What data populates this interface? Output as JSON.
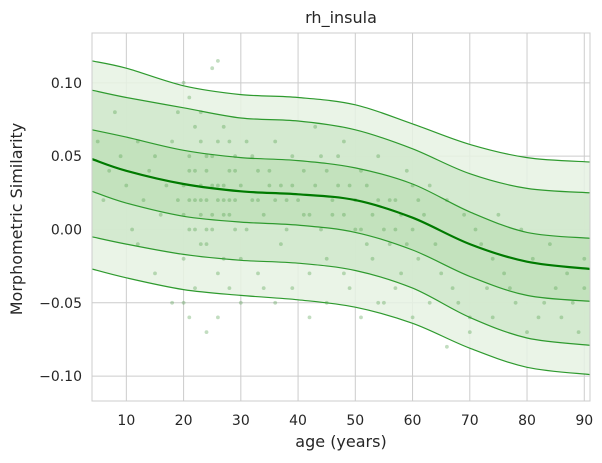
{
  "chart_data": {
    "type": "line",
    "title": "rh_insula",
    "xlabel": "age (years)",
    "ylabel": "Morphometric Similarity",
    "xlim": [
      4,
      91
    ],
    "ylim": [
      -0.117,
      0.134
    ],
    "x_ticks": [
      10,
      20,
      30,
      40,
      50,
      60,
      70,
      80,
      90
    ],
    "y_ticks": [
      -0.1,
      -0.05,
      0.0,
      0.05,
      0.1
    ],
    "y_tick_labels": [
      "−0.10",
      "−0.05",
      "0.00",
      "0.05",
      "0.10"
    ],
    "grid": true,
    "colors": {
      "median": "#007a00",
      "centile": "#2e9a2e",
      "band_outer": "#e6f2e3",
      "band_mid": "#d0e8cb",
      "band_inner": "#bfe1ba",
      "points": "#4f9e4a",
      "grid": "#cccccc"
    },
    "x": [
      4,
      10,
      20,
      30,
      40,
      50,
      60,
      70,
      80,
      91
    ],
    "series": [
      {
        "values": [
          0.115,
          0.11,
          0.098,
          0.092,
          0.09,
          0.085,
          0.072,
          0.058,
          0.049,
          0.046
        ]
      },
      {
        "values": [
          0.095,
          0.09,
          0.083,
          0.076,
          0.074,
          0.068,
          0.055,
          0.038,
          0.028,
          0.025
        ]
      },
      {
        "values": [
          0.068,
          0.063,
          0.054,
          0.049,
          0.047,
          0.042,
          0.031,
          0.012,
          -0.002,
          -0.006
        ]
      },
      {
        "values": [
          0.048,
          0.04,
          0.031,
          0.026,
          0.024,
          0.02,
          0.008,
          -0.01,
          -0.022,
          -0.027
        ]
      },
      {
        "values": [
          0.026,
          0.018,
          0.009,
          0.005,
          0.003,
          -0.002,
          -0.014,
          -0.032,
          -0.045,
          -0.049
        ]
      },
      {
        "values": [
          -0.005,
          -0.01,
          -0.017,
          -0.021,
          -0.023,
          -0.028,
          -0.04,
          -0.06,
          -0.074,
          -0.079
        ]
      },
      {
        "values": [
          -0.027,
          -0.033,
          -0.041,
          -0.045,
          -0.048,
          -0.053,
          -0.064,
          -0.081,
          -0.094,
          -0.099
        ]
      }
    ],
    "points": [
      [
        20,
        0.1
      ],
      [
        22,
        0.07
      ],
      [
        25,
        0.11
      ],
      [
        26,
        0.115
      ],
      [
        24,
        0.05
      ],
      [
        21,
        0.04
      ],
      [
        23,
        0.03
      ],
      [
        27,
        0.02
      ],
      [
        29,
        0.05
      ],
      [
        31,
        0.06
      ],
      [
        33,
        0.04
      ],
      [
        35,
        0.03
      ],
      [
        38,
        0.02
      ],
      [
        41,
        0.01
      ],
      [
        44,
        0.05
      ],
      [
        47,
        0.03
      ],
      [
        50,
        0.0
      ],
      [
        53,
        -0.02
      ],
      [
        56,
        0.02
      ],
      [
        59,
        0.04
      ],
      [
        62,
        0.01
      ],
      [
        65,
        -0.03
      ],
      [
        68,
        -0.05
      ],
      [
        71,
        0.0
      ],
      [
        74,
        -0.02
      ],
      [
        77,
        -0.04
      ],
      [
        80,
        -0.07
      ],
      [
        83,
        -0.05
      ],
      [
        86,
        -0.06
      ],
      [
        89,
        -0.07
      ],
      [
        19,
        0.02
      ],
      [
        20,
        -0.02
      ],
      [
        21,
        0.0
      ],
      [
        22,
        -0.04
      ],
      [
        23,
        0.06
      ],
      [
        24,
        -0.01
      ],
      [
        25,
        0.03
      ],
      [
        26,
        -0.03
      ],
      [
        27,
        0.07
      ],
      [
        28,
        0.01
      ],
      [
        30,
        -0.02
      ],
      [
        32,
        0.02
      ],
      [
        34,
        -0.04
      ],
      [
        36,
        0.06
      ],
      [
        37,
        -0.01
      ],
      [
        39,
        0.03
      ],
      [
        42,
        -0.03
      ],
      [
        43,
        0.07
      ],
      [
        45,
        -0.02
      ],
      [
        46,
        0.01
      ],
      [
        48,
        0.06
      ],
      [
        49,
        -0.04
      ],
      [
        51,
        0.04
      ],
      [
        52,
        -0.01
      ],
      [
        54,
        0.05
      ],
      [
        55,
        -0.05
      ],
      [
        57,
        0.0
      ],
      [
        58,
        -0.03
      ],
      [
        60,
        0.03
      ],
      [
        61,
        -0.02
      ],
      [
        63,
        0.03
      ],
      [
        64,
        -0.01
      ],
      [
        66,
        0.02
      ],
      [
        67,
        -0.04
      ],
      [
        69,
        0.01
      ],
      [
        70,
        -0.06
      ],
      [
        72,
        -0.01
      ],
      [
        73,
        -0.04
      ],
      [
        75,
        0.01
      ],
      [
        76,
        -0.03
      ],
      [
        78,
        -0.05
      ],
      [
        79,
        0.0
      ],
      [
        81,
        -0.02
      ],
      [
        82,
        -0.06
      ],
      [
        84,
        -0.01
      ],
      [
        85,
        -0.04
      ],
      [
        87,
        -0.03
      ],
      [
        88,
        -0.05
      ],
      [
        90,
        -0.02
      ],
      [
        90,
        -0.04
      ],
      [
        18,
        0.06
      ],
      [
        17,
        0.03
      ],
      [
        16,
        0.01
      ],
      [
        15,
        0.05
      ],
      [
        14,
        0.04
      ],
      [
        13,
        0.02
      ],
      [
        12,
        0.06
      ],
      [
        11,
        0.0
      ],
      [
        10,
        0.03
      ],
      [
        9,
        0.05
      ],
      [
        8,
        0.08
      ],
      [
        7,
        0.04
      ],
      [
        6,
        0.02
      ],
      [
        5,
        0.06
      ],
      [
        12,
        -0.01
      ],
      [
        15,
        -0.03
      ],
      [
        18,
        -0.05
      ],
      [
        19,
        0.08
      ],
      [
        21,
        0.09
      ],
      [
        23,
        0.08
      ],
      [
        22,
        0.02
      ],
      [
        23,
        0.01
      ],
      [
        24,
        0.02
      ],
      [
        25,
        0.0
      ],
      [
        26,
        0.03
      ],
      [
        27,
        0.01
      ],
      [
        28,
        0.04
      ],
      [
        29,
        0.02
      ],
      [
        30,
        0.03
      ],
      [
        31,
        0.0
      ],
      [
        32,
        0.05
      ],
      [
        33,
        0.02
      ],
      [
        34,
        0.01
      ],
      [
        35,
        0.04
      ],
      [
        36,
        0.02
      ],
      [
        37,
        0.03
      ],
      [
        38,
        0.0
      ],
      [
        39,
        0.05
      ],
      [
        40,
        0.02
      ],
      [
        41,
        0.04
      ],
      [
        42,
        0.01
      ],
      [
        43,
        0.03
      ],
      [
        44,
        0.0
      ],
      [
        45,
        0.04
      ],
      [
        46,
        0.02
      ],
      [
        47,
        0.05
      ],
      [
        48,
        0.01
      ],
      [
        49,
        0.03
      ],
      [
        50,
        0.02
      ],
      [
        51,
        0.0
      ],
      [
        52,
        0.03
      ],
      [
        53,
        0.01
      ],
      [
        54,
        0.02
      ],
      [
        55,
        0.0
      ],
      [
        56,
        -0.01
      ],
      [
        57,
        0.02
      ],
      [
        58,
        0.01
      ],
      [
        59,
        -0.01
      ],
      [
        60,
        0.0
      ],
      [
        61,
        0.02
      ],
      [
        20,
        -0.05
      ],
      [
        21,
        -0.06
      ],
      [
        24,
        -0.07
      ],
      [
        26,
        -0.06
      ],
      [
        28,
        -0.04
      ],
      [
        30,
        -0.05
      ],
      [
        33,
        -0.03
      ],
      [
        36,
        -0.05
      ],
      [
        39,
        -0.04
      ],
      [
        42,
        -0.06
      ],
      [
        45,
        -0.05
      ],
      [
        48,
        -0.03
      ],
      [
        51,
        -0.06
      ],
      [
        54,
        -0.05
      ],
      [
        57,
        -0.04
      ],
      [
        60,
        -0.06
      ],
      [
        63,
        -0.05
      ],
      [
        66,
        -0.08
      ],
      [
        70,
        -0.07
      ],
      [
        74,
        -0.06
      ],
      [
        20,
        0.03
      ],
      [
        20,
        0.01
      ],
      [
        21,
        0.02
      ],
      [
        21,
        0.05
      ],
      [
        22,
        0.04
      ],
      [
        22,
        0.0
      ],
      [
        23,
        0.02
      ],
      [
        23,
        -0.01
      ],
      [
        24,
        0.04
      ],
      [
        24,
        0.0
      ],
      [
        25,
        0.05
      ],
      [
        25,
        0.01
      ],
      [
        26,
        0.02
      ],
      [
        26,
        0.06
      ],
      [
        27,
        0.03
      ],
      [
        27,
        -0.02
      ],
      [
        28,
        0.02
      ],
      [
        28,
        0.06
      ],
      [
        29,
        0.0
      ],
      [
        29,
        0.04
      ]
    ]
  }
}
